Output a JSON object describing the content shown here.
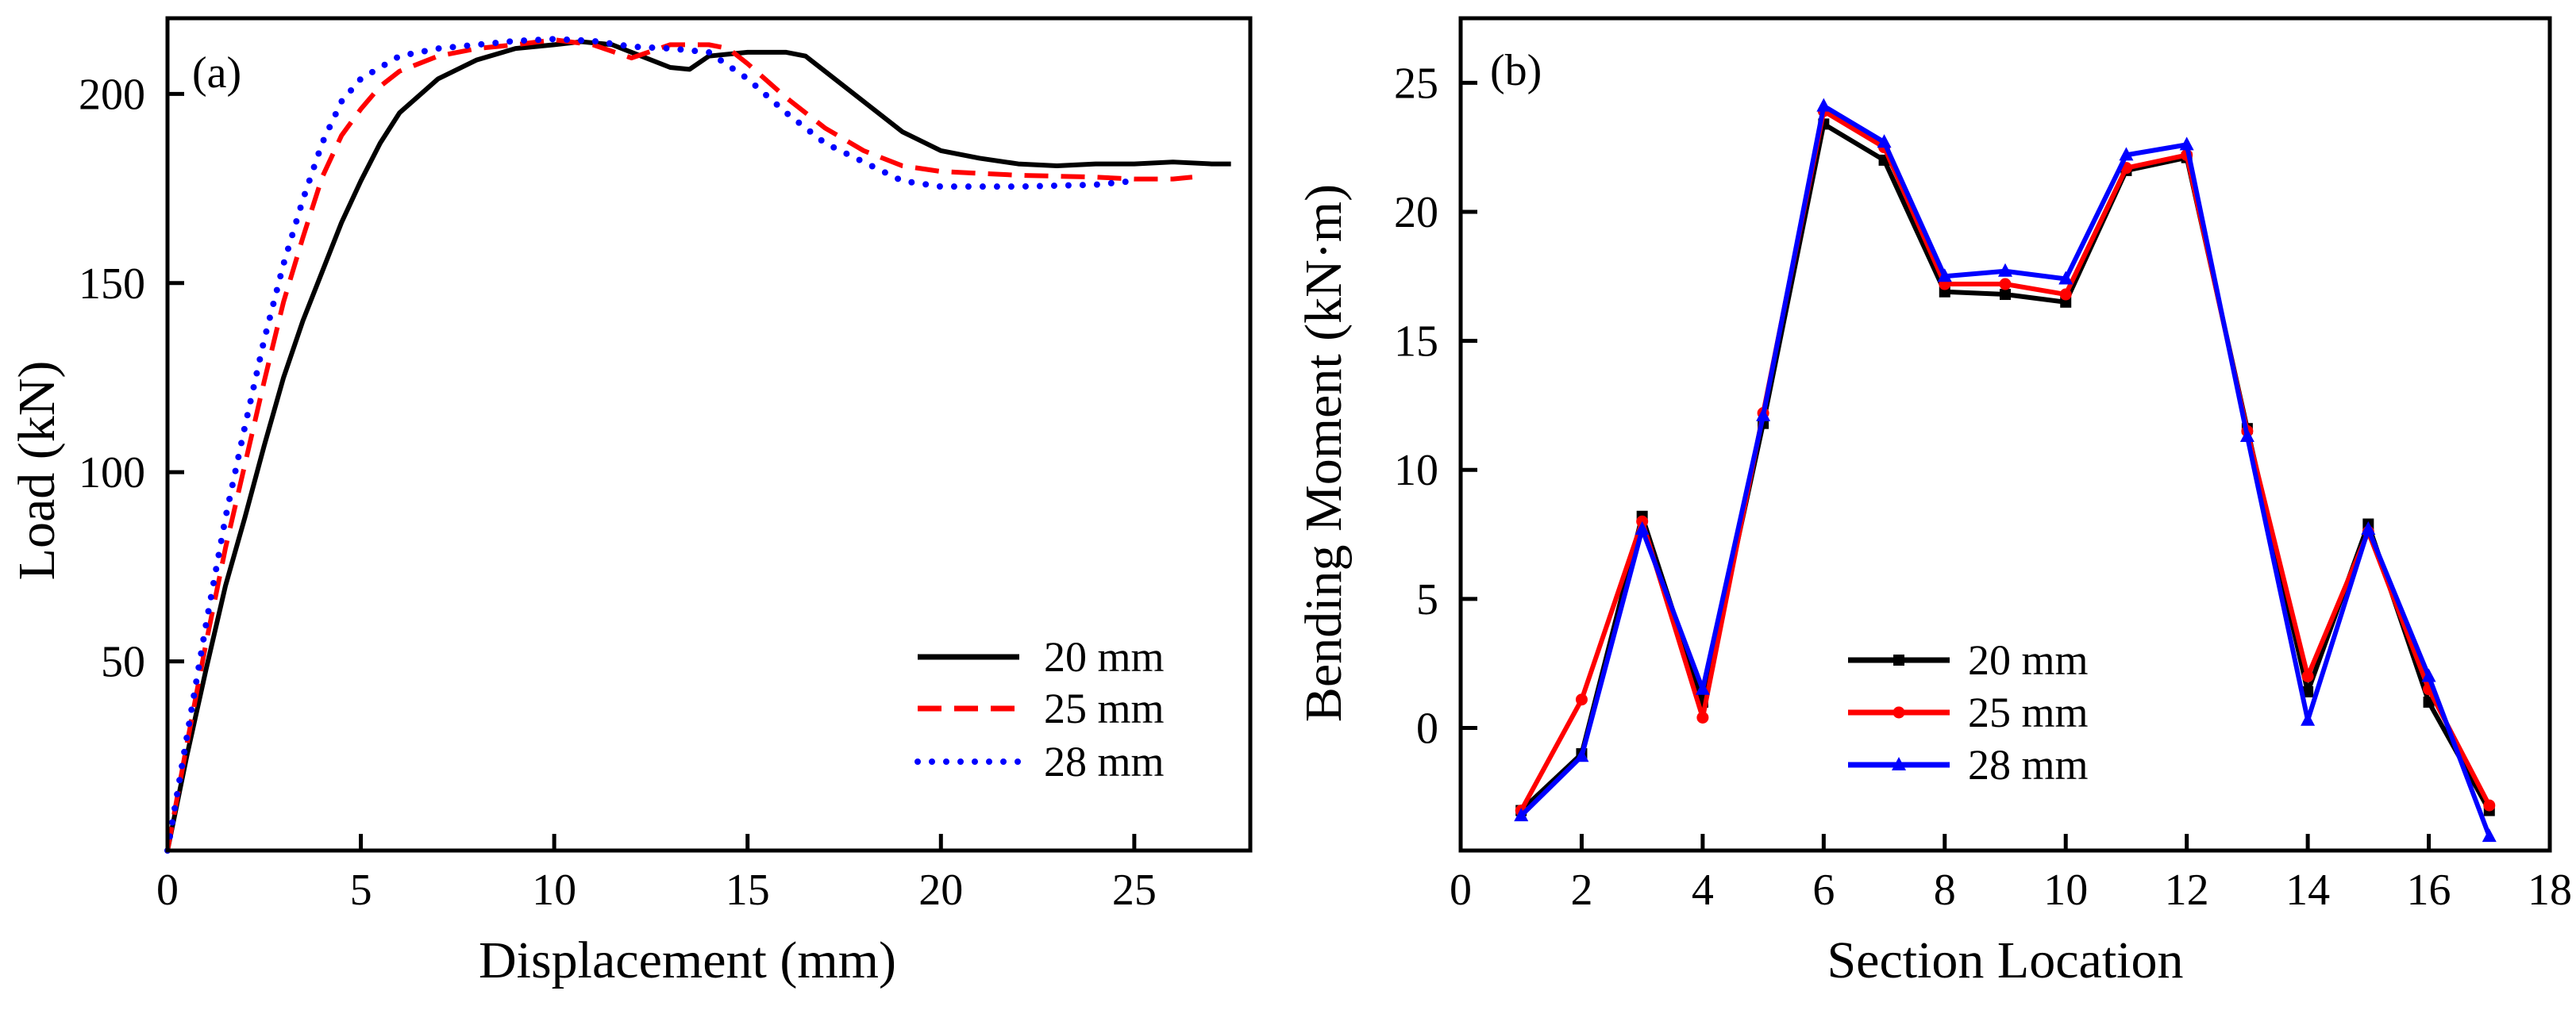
{
  "colors": {
    "s20": "#000000",
    "s25": "#ff0000",
    "s28": "#0000ff"
  },
  "chart_data": [
    {
      "type": "line",
      "panel_label": "(a)",
      "title": "",
      "xlabel": "Displacement (mm)",
      "ylabel": "Load (kN)",
      "xlim": [
        0,
        28
      ],
      "ylim": [
        0,
        220
      ],
      "xticks": [
        "0",
        "5",
        "10",
        "15",
        "20",
        "25"
      ],
      "yticks": [
        "50",
        "100",
        "150",
        "200"
      ],
      "grid": false,
      "legend_position": "bottom-right",
      "series": [
        {
          "name": "20 mm",
          "style": "solid",
          "points": [
            [
              0,
              0
            ],
            [
              0.5,
              25
            ],
            [
              1,
              48
            ],
            [
              1.5,
              70
            ],
            [
              2,
              88
            ],
            [
              2.5,
              107
            ],
            [
              3,
              125
            ],
            [
              3.5,
              140
            ],
            [
              4,
              153
            ],
            [
              4.5,
              166
            ],
            [
              5,
              177
            ],
            [
              5.5,
              187
            ],
            [
              6,
              195
            ],
            [
              7,
              204
            ],
            [
              8,
              209
            ],
            [
              9,
              212
            ],
            [
              10,
              213
            ],
            [
              10.7,
              213.8
            ],
            [
              11.5,
              213
            ],
            [
              12,
              211
            ],
            [
              13,
              207
            ],
            [
              13.5,
              206.5
            ],
            [
              14,
              210
            ],
            [
              15,
              211
            ],
            [
              16,
              211
            ],
            [
              16.5,
              210
            ],
            [
              17,
              206
            ],
            [
              18,
              198
            ],
            [
              19,
              190
            ],
            [
              20,
              185
            ],
            [
              21,
              183
            ],
            [
              22,
              181.5
            ],
            [
              23,
              181
            ],
            [
              24,
              181.5
            ],
            [
              25,
              181.5
            ],
            [
              26,
              182
            ],
            [
              27,
              181.5
            ],
            [
              27.5,
              181.5
            ]
          ]
        },
        {
          "name": "25 mm",
          "style": "dashed",
          "points": [
            [
              0,
              0
            ],
            [
              0.5,
              28
            ],
            [
              1,
              55
            ],
            [
              1.5,
              80
            ],
            [
              2,
              102
            ],
            [
              2.5,
              124
            ],
            [
              3,
              145
            ],
            [
              3.5,
              162
            ],
            [
              4,
              178
            ],
            [
              4.5,
              189
            ],
            [
              5,
              196
            ],
            [
              5.5,
              202
            ],
            [
              6,
              206
            ],
            [
              7,
              210
            ],
            [
              8,
              212
            ],
            [
              9,
              213
            ],
            [
              10,
              214.3
            ],
            [
              11,
              213
            ],
            [
              12,
              209.5
            ],
            [
              13,
              213
            ],
            [
              14,
              213
            ],
            [
              14.5,
              212
            ],
            [
              15,
              208
            ],
            [
              16,
              199
            ],
            [
              17,
              191
            ],
            [
              18,
              185
            ],
            [
              19,
              181
            ],
            [
              20,
              179.5
            ],
            [
              22,
              178.5
            ],
            [
              24,
              178
            ],
            [
              25,
              177.5
            ],
            [
              26,
              177.5
            ],
            [
              26.5,
              178
            ]
          ]
        },
        {
          "name": "28 mm",
          "style": "dotted",
          "points": [
            [
              0,
              0
            ],
            [
              0.5,
              30
            ],
            [
              1,
              60
            ],
            [
              1.5,
              88
            ],
            [
              2,
              112
            ],
            [
              2.5,
              135
            ],
            [
              3,
              155
            ],
            [
              3.5,
              172
            ],
            [
              4,
              187
            ],
            [
              4.5,
              198
            ],
            [
              5,
              204
            ],
            [
              5.5,
              207
            ],
            [
              6,
              210
            ],
            [
              7,
              212
            ],
            [
              8,
              213
            ],
            [
              9,
              214
            ],
            [
              10,
              214.5
            ],
            [
              11,
              214
            ],
            [
              12,
              212.5
            ],
            [
              13,
              212
            ],
            [
              14,
              211
            ],
            [
              15,
              204
            ],
            [
              16,
              195
            ],
            [
              17,
              187
            ],
            [
              18,
              182
            ],
            [
              19,
              177
            ],
            [
              20,
              175.5
            ],
            [
              21,
              175.5
            ],
            [
              22,
              175.5
            ],
            [
              24,
              176
            ],
            [
              25,
              177
            ]
          ]
        }
      ]
    },
    {
      "type": "line",
      "panel_label": "(b)",
      "title": "",
      "xlabel": "Section Location",
      "ylabel": "Bending Moment (kN·m)",
      "xlim": [
        0,
        18
      ],
      "ylim": [
        -4.75,
        27.5
      ],
      "xticks": [
        "0",
        "2",
        "4",
        "6",
        "8",
        "10",
        "12",
        "14",
        "16",
        "18"
      ],
      "yticks": [
        "0",
        "5",
        "10",
        "15",
        "20",
        "25"
      ],
      "grid": false,
      "legend_position": "bottom-center",
      "x": [
        1,
        2,
        3,
        4,
        5,
        6,
        7,
        8,
        9,
        10,
        11,
        12,
        13,
        14,
        15,
        16,
        17
      ],
      "series": [
        {
          "name": "20 mm",
          "marker": "square",
          "values": [
            -3.2,
            -1.0,
            8.2,
            1.0,
            11.8,
            23.4,
            22.0,
            16.9,
            16.8,
            16.5,
            21.6,
            22.1,
            11.6,
            1.4,
            7.9,
            1.0,
            -3.2
          ]
        },
        {
          "name": "25 mm",
          "marker": "circle",
          "values": [
            -3.2,
            1.1,
            8.0,
            0.4,
            12.2,
            23.9,
            22.5,
            17.2,
            17.2,
            16.8,
            21.7,
            22.2,
            11.5,
            2.0,
            7.6,
            1.5,
            -3.0
          ]
        },
        {
          "name": "28 mm",
          "marker": "triangle",
          "values": [
            -3.4,
            -1.1,
            7.7,
            1.5,
            12.1,
            24.1,
            22.7,
            17.5,
            17.7,
            17.4,
            22.2,
            22.6,
            11.3,
            0.3,
            7.7,
            2.0,
            -4.2
          ]
        }
      ]
    }
  ]
}
